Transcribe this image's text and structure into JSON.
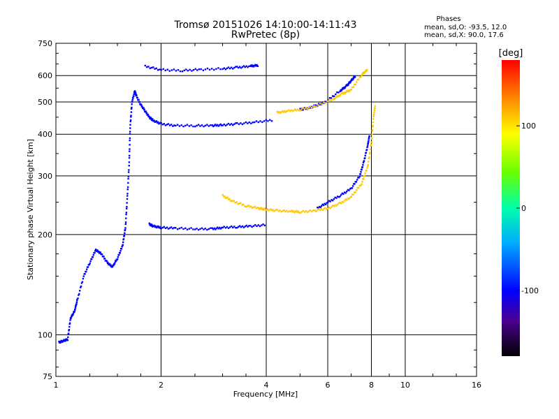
{
  "header": {
    "title_line1": "Tromsø 20151026 14:10:00-14:11:43",
    "title_line2": "RwPretec (8p)",
    "phases_label": "Phases",
    "phases_o": "mean, sd,O: -93.5, 12.0",
    "phases_x": "mean, sd,X:  90.0, 17.6"
  },
  "chart_data": {
    "type": "scatter",
    "xlabel": "Frequency [MHz]",
    "ylabel": "Stationary phase Virtual Height [km]",
    "x_scale": "log",
    "y_scale": "log",
    "xlim": [
      1,
      16
    ],
    "ylim": [
      75,
      750
    ],
    "x_ticks": [
      "1",
      "2",
      "4",
      "6",
      "8",
      "10",
      "16"
    ],
    "x_tick_values": [
      1,
      2,
      4,
      6,
      8,
      10,
      16
    ],
    "y_ticks": [
      "75",
      "100",
      "200",
      "300",
      "400",
      "500",
      "600",
      "750"
    ],
    "y_tick_values": [
      75,
      100,
      200,
      300,
      400,
      500,
      600,
      750
    ],
    "grid": true,
    "colorbar": {
      "label": "[deg]",
      "ticks": [
        "100",
        "0",
        "-100"
      ],
      "tick_values": [
        100,
        0,
        -100
      ],
      "range": [
        -180,
        180
      ]
    },
    "series": [
      {
        "phase": -100,
        "points": [
          [
            1.02,
            95
          ],
          [
            1.05,
            96
          ],
          [
            1.08,
            97
          ],
          [
            1.1,
            112
          ],
          [
            1.13,
            118
          ],
          [
            1.15,
            127
          ],
          [
            1.2,
            150
          ],
          [
            1.25,
            165
          ],
          [
            1.3,
            180
          ],
          [
            1.35,
            175
          ],
          [
            1.4,
            165
          ],
          [
            1.45,
            160
          ],
          [
            1.5,
            170
          ],
          [
            1.55,
            185
          ],
          [
            1.58,
            210
          ],
          [
            1.6,
            260
          ],
          [
            1.62,
            330
          ],
          [
            1.63,
            420
          ],
          [
            1.65,
            500
          ],
          [
            1.68,
            540
          ],
          [
            1.7,
            520
          ],
          [
            1.75,
            490
          ],
          [
            1.8,
            470
          ],
          [
            1.85,
            450
          ],
          [
            1.9,
            440
          ],
          [
            2.0,
            430
          ],
          [
            2.2,
            425
          ],
          [
            2.5,
            425
          ],
          [
            2.8,
            425
          ],
          [
            3.0,
            427
          ],
          [
            3.3,
            430
          ],
          [
            3.7,
            435
          ],
          [
            4.2,
            442
          ]
        ]
      },
      {
        "phase": -100,
        "points": [
          [
            1.85,
            215
          ],
          [
            1.9,
            212
          ],
          [
            2.0,
            210
          ],
          [
            2.2,
            209
          ],
          [
            2.5,
            208
          ],
          [
            2.8,
            208
          ],
          [
            3.0,
            210
          ],
          [
            3.3,
            211
          ],
          [
            3.6,
            212
          ],
          [
            4.0,
            214
          ]
        ]
      },
      {
        "phase": -100,
        "points": [
          [
            1.8,
            640
          ],
          [
            2.0,
            625
          ],
          [
            2.3,
            622
          ],
          [
            2.6,
            626
          ],
          [
            3.0,
            630
          ],
          [
            3.3,
            635
          ],
          [
            3.6,
            641
          ],
          [
            3.8,
            645
          ]
        ]
      },
      {
        "phase": -100,
        "points": [
          [
            5.0,
            475
          ],
          [
            5.3,
            480
          ],
          [
            5.6,
            490
          ],
          [
            5.9,
            500
          ],
          [
            6.5,
            540
          ],
          [
            6.8,
            560
          ],
          [
            7.0,
            580
          ],
          [
            7.2,
            600
          ]
        ]
      },
      {
        "phase": -100,
        "points": [
          [
            5.6,
            240
          ],
          [
            6.0,
            250
          ],
          [
            6.5,
            262
          ],
          [
            7.0,
            275
          ],
          [
            7.4,
            300
          ],
          [
            7.6,
            330
          ],
          [
            7.8,
            370
          ],
          [
            7.9,
            400
          ]
        ]
      },
      {
        "phase": 110,
        "points": [
          [
            3.0,
            262
          ],
          [
            3.2,
            252
          ],
          [
            3.5,
            244
          ],
          [
            3.8,
            240
          ],
          [
            4.0,
            238
          ],
          [
            4.3,
            236
          ],
          [
            4.7,
            235
          ],
          [
            5.0,
            234
          ],
          [
            5.5,
            236
          ],
          [
            6.0,
            240
          ],
          [
            6.5,
            248
          ],
          [
            7.0,
            260
          ],
          [
            7.5,
            285
          ],
          [
            7.8,
            320
          ],
          [
            8.0,
            380
          ],
          [
            8.1,
            450
          ],
          [
            8.2,
            490
          ]
        ]
      },
      {
        "phase": 110,
        "points": [
          [
            4.3,
            465
          ],
          [
            4.6,
            470
          ],
          [
            5.0,
            475
          ],
          [
            5.5,
            485
          ],
          [
            6.2,
            510
          ],
          [
            6.6,
            530
          ],
          [
            7.0,
            545
          ],
          [
            7.5,
            605
          ],
          [
            7.8,
            625
          ]
        ]
      }
    ]
  }
}
